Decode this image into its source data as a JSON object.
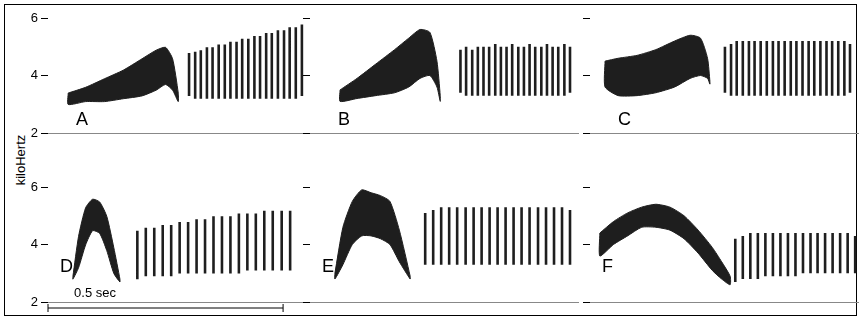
{
  "y_label": "kiloHertz",
  "chart_data": [
    {
      "type": "spectrogram",
      "title": "A",
      "xlim": [
        0,
        0.57
      ],
      "ylim": [
        2,
        6
      ],
      "yticks": [
        2,
        4,
        6
      ],
      "tick_labels": "y",
      "color": "#1e1e1e",
      "note": {
        "t": [
          0.043,
          0.08,
          0.12,
          0.16,
          0.2,
          0.23,
          0.25,
          0.265,
          0.277
        ],
        "high": [
          3.4,
          3.6,
          3.9,
          4.2,
          4.6,
          4.9,
          5.0,
          4.6,
          3.4
        ],
        "low": [
          3.0,
          3.1,
          3.1,
          3.2,
          3.3,
          3.5,
          3.7,
          3.5,
          3.1
        ]
      },
      "trill": {
        "t": [
          0.3,
          0.313,
          0.325,
          0.338,
          0.35,
          0.363,
          0.376,
          0.388,
          0.401,
          0.413,
          0.426,
          0.439,
          0.451,
          0.464,
          0.476,
          0.489,
          0.502,
          0.514,
          0.527,
          0.54
        ],
        "high": [
          4.8,
          4.85,
          4.9,
          5.0,
          5.0,
          5.1,
          5.1,
          5.2,
          5.2,
          5.3,
          5.3,
          5.4,
          5.4,
          5.5,
          5.5,
          5.6,
          5.6,
          5.7,
          5.7,
          5.8
        ],
        "low": [
          3.3,
          3.2,
          3.2,
          3.2,
          3.2,
          3.2,
          3.2,
          3.2,
          3.2,
          3.2,
          3.2,
          3.2,
          3.2,
          3.2,
          3.2,
          3.2,
          3.2,
          3.2,
          3.2,
          3.3
        ]
      }
    },
    {
      "type": "spectrogram",
      "title": "B",
      "xlim": [
        0,
        0.57
      ],
      "ylim": [
        2,
        6
      ],
      "yticks": [
        2,
        4,
        6
      ],
      "tick_labels": false,
      "color": "#1e1e1e",
      "note": {
        "t": [
          0.064,
          0.1,
          0.14,
          0.18,
          0.21,
          0.234,
          0.255,
          0.27,
          0.277
        ],
        "high": [
          3.5,
          3.9,
          4.4,
          4.9,
          5.3,
          5.6,
          5.5,
          4.5,
          3.3
        ],
        "low": [
          3.1,
          3.2,
          3.3,
          3.4,
          3.6,
          3.9,
          4.0,
          3.6,
          3.1
        ]
      },
      "trill": {
        "t": [
          0.32,
          0.332,
          0.345,
          0.357,
          0.369,
          0.381,
          0.394,
          0.406,
          0.418,
          0.43,
          0.443,
          0.455,
          0.467,
          0.479,
          0.492,
          0.504,
          0.516,
          0.528,
          0.541,
          0.553
        ],
        "high": [
          4.9,
          5.0,
          4.9,
          5.0,
          5.0,
          5.0,
          5.1,
          5.0,
          5.0,
          5.1,
          5.0,
          5.0,
          5.1,
          5.0,
          5.0,
          5.1,
          5.0,
          5.0,
          5.1,
          5.0
        ],
        "low": [
          3.4,
          3.3,
          3.3,
          3.3,
          3.3,
          3.3,
          3.3,
          3.3,
          3.3,
          3.3,
          3.3,
          3.3,
          3.3,
          3.3,
          3.3,
          3.3,
          3.3,
          3.3,
          3.3,
          3.4
        ]
      }
    },
    {
      "type": "spectrogram",
      "title": "C",
      "xlim": [
        0,
        0.57
      ],
      "ylim": [
        2,
        6
      ],
      "yticks": [
        2,
        4,
        6
      ],
      "tick_labels": false,
      "color": "#1e1e1e",
      "note": {
        "t": [
          0.032,
          0.06,
          0.1,
          0.14,
          0.18,
          0.213,
          0.235,
          0.25,
          0.255
        ],
        "high": [
          4.5,
          4.6,
          4.7,
          4.9,
          5.2,
          5.4,
          5.3,
          4.6,
          3.8
        ],
        "low": [
          3.6,
          3.3,
          3.3,
          3.4,
          3.6,
          3.9,
          4.0,
          3.9,
          3.7
        ]
      },
      "trill": {
        "t": [
          0.287,
          0.3,
          0.312,
          0.325,
          0.338,
          0.35,
          0.363,
          0.376,
          0.389,
          0.401,
          0.414,
          0.427,
          0.439,
          0.452,
          0.465,
          0.477,
          0.49,
          0.503,
          0.515,
          0.528,
          0.541,
          0.553
        ],
        "high": [
          5.0,
          5.1,
          5.2,
          5.2,
          5.2,
          5.2,
          5.2,
          5.2,
          5.2,
          5.2,
          5.2,
          5.2,
          5.2,
          5.2,
          5.2,
          5.2,
          5.2,
          5.2,
          5.2,
          5.2,
          5.2,
          5.1
        ],
        "low": [
          3.4,
          3.3,
          3.3,
          3.3,
          3.3,
          3.3,
          3.3,
          3.3,
          3.3,
          3.3,
          3.3,
          3.3,
          3.3,
          3.3,
          3.3,
          3.3,
          3.3,
          3.3,
          3.3,
          3.3,
          3.3,
          3.4
        ]
      }
    },
    {
      "type": "spectrogram",
      "title": "D",
      "xlim": [
        0,
        0.57
      ],
      "ylim": [
        2,
        6
      ],
      "yticks": [
        2,
        4,
        6
      ],
      "tick_labels": "y",
      "color": "#1e1e1e",
      "scale_bar": {
        "label": "0.5 sec",
        "length": 0.5
      },
      "note": {
        "t": [
          0.053,
          0.065,
          0.08,
          0.095,
          0.11,
          0.125,
          0.14,
          0.153
        ],
        "high": [
          2.9,
          4.3,
          5.3,
          5.6,
          5.5,
          5.0,
          3.9,
          2.8
        ],
        "low": [
          2.8,
          3.2,
          4.0,
          4.5,
          4.4,
          3.8,
          3.0,
          2.7
        ]
      },
      "trill": {
        "t": [
          0.19,
          0.208,
          0.226,
          0.244,
          0.262,
          0.28,
          0.298,
          0.316,
          0.334,
          0.352,
          0.37,
          0.388,
          0.406,
          0.424,
          0.442,
          0.46,
          0.478,
          0.497,
          0.515
        ],
        "high": [
          4.5,
          4.6,
          4.6,
          4.7,
          4.7,
          4.8,
          4.8,
          4.9,
          4.9,
          5.0,
          5.0,
          5.0,
          5.1,
          5.1,
          5.1,
          5.2,
          5.2,
          5.2,
          5.2
        ],
        "low": [
          2.8,
          2.9,
          2.9,
          2.9,
          2.9,
          3.0,
          3.0,
          3.0,
          3.0,
          3.0,
          3.0,
          3.0,
          3.0,
          3.1,
          3.1,
          3.1,
          3.1,
          3.1,
          3.1
        ]
      }
    },
    {
      "type": "spectrogram",
      "title": "E",
      "xlim": [
        0,
        0.57
      ],
      "ylim": [
        2,
        6
      ],
      "yticks": [
        2,
        4,
        6
      ],
      "tick_labels": false,
      "color": "#1e1e1e",
      "note": {
        "t": [
          0.053,
          0.07,
          0.09,
          0.11,
          0.13,
          0.15,
          0.17,
          0.19,
          0.213
        ],
        "high": [
          3.0,
          4.6,
          5.5,
          5.9,
          5.8,
          5.7,
          5.5,
          4.5,
          2.9
        ],
        "low": [
          2.8,
          3.3,
          4.0,
          4.3,
          4.3,
          4.2,
          4.0,
          3.4,
          2.8
        ]
      },
      "trill": {
        "t": [
          0.245,
          0.262,
          0.279,
          0.296,
          0.313,
          0.331,
          0.348,
          0.365,
          0.382,
          0.399,
          0.416,
          0.433,
          0.45,
          0.467,
          0.485,
          0.502,
          0.519,
          0.536,
          0.553
        ],
        "high": [
          5.1,
          5.2,
          5.3,
          5.3,
          5.3,
          5.3,
          5.3,
          5.3,
          5.3,
          5.3,
          5.3,
          5.3,
          5.3,
          5.3,
          5.3,
          5.3,
          5.3,
          5.3,
          5.2
        ],
        "low": [
          3.3,
          3.3,
          3.3,
          3.3,
          3.3,
          3.3,
          3.3,
          3.3,
          3.3,
          3.3,
          3.3,
          3.3,
          3.3,
          3.3,
          3.3,
          3.3,
          3.3,
          3.3,
          3.3
        ]
      }
    },
    {
      "type": "spectrogram",
      "title": "F",
      "xlim": [
        0,
        0.57
      ],
      "ylim": [
        2,
        6
      ],
      "yticks": [
        2,
        4,
        6
      ],
      "tick_labels": false,
      "color": "#1e1e1e",
      "note": {
        "t": [
          0.021,
          0.05,
          0.08,
          0.11,
          0.14,
          0.17,
          0.2,
          0.23,
          0.26,
          0.28,
          0.298
        ],
        "high": [
          4.4,
          4.8,
          5.1,
          5.3,
          5.4,
          5.3,
          5.0,
          4.5,
          3.9,
          3.4,
          2.9
        ],
        "low": [
          3.6,
          4.0,
          4.3,
          4.6,
          4.6,
          4.5,
          4.2,
          3.7,
          3.1,
          2.8,
          2.6
        ]
      },
      "trill": {
        "t": [
          0.309,
          0.325,
          0.341,
          0.357,
          0.373,
          0.389,
          0.405,
          0.421,
          0.437,
          0.453,
          0.469,
          0.484,
          0.5,
          0.516,
          0.532,
          0.548,
          0.564
        ],
        "high": [
          4.2,
          4.3,
          4.4,
          4.4,
          4.4,
          4.4,
          4.4,
          4.4,
          4.4,
          4.4,
          4.4,
          4.4,
          4.4,
          4.4,
          4.4,
          4.4,
          4.3
        ],
        "low": [
          2.7,
          2.8,
          2.8,
          2.8,
          2.9,
          2.9,
          2.9,
          2.9,
          2.9,
          3.0,
          3.0,
          3.0,
          3.0,
          3.0,
          3.0,
          3.0,
          3.0
        ]
      }
    }
  ]
}
